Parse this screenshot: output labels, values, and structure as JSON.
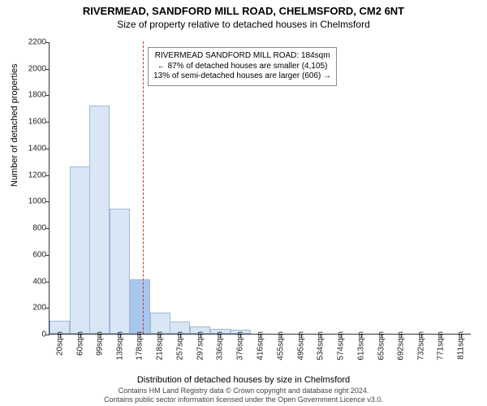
{
  "title": "RIVERMEAD, SANDFORD MILL ROAD, CHELMSFORD, CM2 6NT",
  "subtitle": "Size of property relative to detached houses in Chelmsford",
  "ylabel": "Number of detached properties",
  "xlabel": "Distribution of detached houses by size in Chelmsford",
  "footnote1": "Contains HM Land Registry data © Crown copyright and database right 2024.",
  "footnote2": "Contains public sector information licensed under the Open Government Licence v3.0.",
  "chart": {
    "type": "bar",
    "ylim": [
      0,
      2200
    ],
    "yticks": [
      0,
      200,
      400,
      600,
      800,
      1000,
      1200,
      1400,
      1600,
      1800,
      2000,
      2200
    ],
    "xcategories": [
      "20sqm",
      "60sqm",
      "99sqm",
      "139sqm",
      "178sqm",
      "218sqm",
      "257sqm",
      "297sqm",
      "336sqm",
      "376sqm",
      "416sqm",
      "455sqm",
      "495sqm",
      "534sqm",
      "574sqm",
      "613sqm",
      "653sqm",
      "692sqm",
      "732sqm",
      "771sqm",
      "811sqm"
    ],
    "bars": [
      {
        "x": 20,
        "value": 100
      },
      {
        "x": 60,
        "value": 1260
      },
      {
        "x": 99,
        "value": 1720
      },
      {
        "x": 139,
        "value": 940
      },
      {
        "x": 178,
        "value": 410
      },
      {
        "x": 218,
        "value": 160
      },
      {
        "x": 257,
        "value": 90
      },
      {
        "x": 297,
        "value": 55
      },
      {
        "x": 336,
        "value": 35
      },
      {
        "x": 376,
        "value": 30
      },
      {
        "x": 416,
        "value": 0
      },
      {
        "x": 455,
        "value": 0
      },
      {
        "x": 495,
        "value": 0
      },
      {
        "x": 534,
        "value": 0
      },
      {
        "x": 574,
        "value": 0
      },
      {
        "x": 613,
        "value": 0
      },
      {
        "x": 653,
        "value": 0
      },
      {
        "x": 692,
        "value": 0
      },
      {
        "x": 732,
        "value": 0
      },
      {
        "x": 771,
        "value": 0
      },
      {
        "x": 811,
        "value": 0
      }
    ],
    "x_range": [
      0,
      831
    ],
    "bar_fill": "#d8e6f6",
    "bar_fill_highlight": "#a9c6ec",
    "bar_stroke": "#9fb9d8",
    "bar_width_sqm": 40,
    "highlight_index": 4,
    "reference_x": 184,
    "reference_color": "#d03030",
    "background_color": "#ffffff",
    "axis_color": "#333333",
    "tick_fontsize": 10,
    "label_fontsize": 11,
    "title_fontsize": 13,
    "subtitle_fontsize": 12
  },
  "annotation": {
    "line1": "RIVERMEAD SANDFORD MILL ROAD: 184sqm",
    "line2": "← 87% of detached houses are smaller (4,105)",
    "line3": "13% of semi-detached houses are larger (606) →"
  }
}
